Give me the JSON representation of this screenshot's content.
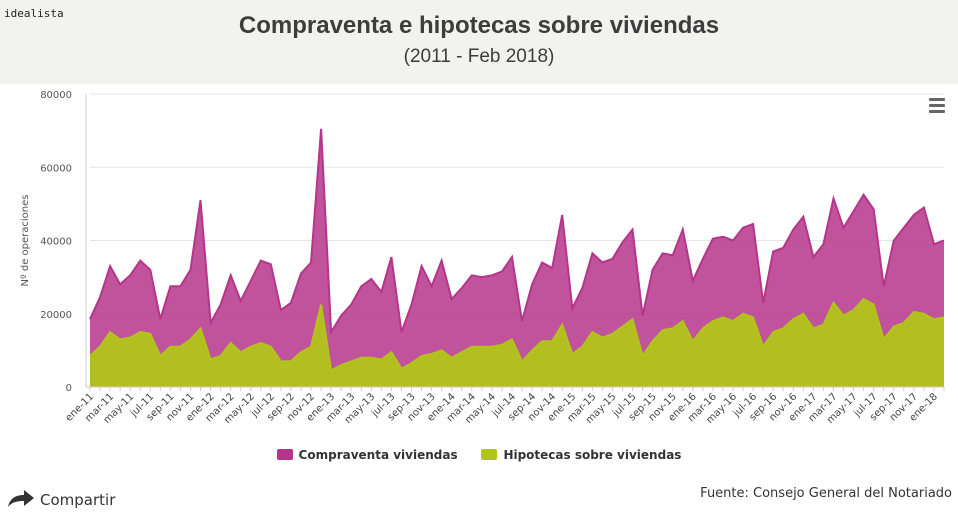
{
  "brand": "idealista",
  "menu_icon": "hamburger-menu-icon",
  "share": {
    "label": "Compartir",
    "icon": "share-arrow-icon"
  },
  "source": "Fuente: Consejo General del Notariado",
  "colors": {
    "compraventa": "#b5358a",
    "hipotecas": "#b2c41a",
    "header_bg": "#f2f2ee"
  },
  "chart_data": {
    "type": "area",
    "title": "Compraventa e hipotecas sobre viviendas",
    "subtitle": "(2011 - Feb 2018)",
    "ylabel": "Nº de operaciones",
    "ylim": [
      0,
      80000
    ],
    "yticks": [
      0,
      20000,
      40000,
      60000,
      80000
    ],
    "ytick_labels": [
      "0",
      "20000",
      "40000",
      "60000",
      "80000"
    ],
    "xtick_labels": [
      "ene-11",
      "mar-11",
      "may-11",
      "jul-11",
      "sep-11",
      "nov-11",
      "ene-12",
      "mar-12",
      "may-12",
      "jul-12",
      "sep-12",
      "nov-12",
      "ene-13",
      "mar-13",
      "may-13",
      "jul-13",
      "sep-13",
      "nov-13",
      "ene-14",
      "mar-14",
      "may-14",
      "jul-14",
      "sep-14",
      "nov-14",
      "ene-15",
      "mar-15",
      "may-15",
      "jul-15",
      "sep-15",
      "nov-15",
      "ene-16",
      "mar-16",
      "may-16",
      "jul-16",
      "sep-16",
      "nov-16",
      "ene-17",
      "mar-17",
      "may-17",
      "jul-17",
      "sep-17",
      "nov-17",
      "ene-18"
    ],
    "legend_position": "bottom",
    "series": [
      {
        "name": "Compraventa viviendas",
        "color": "#b5358a",
        "values": [
          18500,
          24500,
          33000,
          28000,
          30500,
          34500,
          32000,
          18500,
          27500,
          27500,
          32000,
          51000,
          17500,
          22500,
          30500,
          23500,
          29000,
          34500,
          33500,
          21000,
          23000,
          31000,
          34000,
          70500,
          15000,
          19500,
          22500,
          27500,
          29500,
          26000,
          35500,
          15000,
          22500,
          33000,
          27500,
          34500,
          24000,
          27000,
          30500,
          30000,
          30500,
          31500,
          35500,
          18000,
          28000,
          34000,
          32500,
          47000,
          21500,
          27000,
          36500,
          34000,
          35000,
          39500,
          43000,
          19500,
          32000,
          36500,
          36000,
          43000,
          29000,
          35000,
          40500,
          41000,
          40000,
          43500,
          44500,
          23000,
          37000,
          38000,
          43000,
          46500,
          35500,
          39000,
          51500,
          43500,
          48000,
          52500,
          48500,
          27500,
          40000,
          43500,
          47000,
          49000,
          39000,
          40000
        ],
        "fill": "#b5358a"
      },
      {
        "name": "Hipotecas sobre viviendas",
        "color": "#b2c41a",
        "values": [
          8500,
          11000,
          15000,
          13000,
          13500,
          15000,
          14500,
          8500,
          11000,
          11000,
          13000,
          16000,
          7500,
          8500,
          12000,
          9500,
          11000,
          12000,
          11000,
          7000,
          7000,
          9500,
          11000,
          22500,
          4500,
          6000,
          7000,
          8000,
          8000,
          7500,
          9500,
          5000,
          6500,
          8500,
          9000,
          10000,
          8000,
          9500,
          11000,
          11000,
          11000,
          11500,
          13000,
          7000,
          10000,
          12500,
          12500,
          17000,
          9000,
          11000,
          15000,
          13500,
          14500,
          16500,
          18500,
          8500,
          12500,
          15500,
          16000,
          18000,
          12500,
          16000,
          18000,
          19000,
          18000,
          20000,
          19000,
          11000,
          15000,
          16000,
          18500,
          20000,
          16000,
          17000,
          23000,
          19500,
          21000,
          24000,
          22500,
          13000,
          16500,
          17500,
          20500,
          20000,
          18500,
          19000
        ],
        "fill": "#b2c41a"
      }
    ]
  }
}
